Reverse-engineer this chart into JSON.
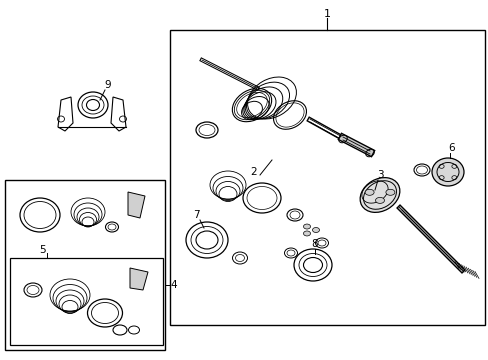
{
  "background_color": "#ffffff",
  "line_color": "#000000",
  "gray_fill": "#d0d0d0",
  "light_gray": "#e8e8e8"
}
